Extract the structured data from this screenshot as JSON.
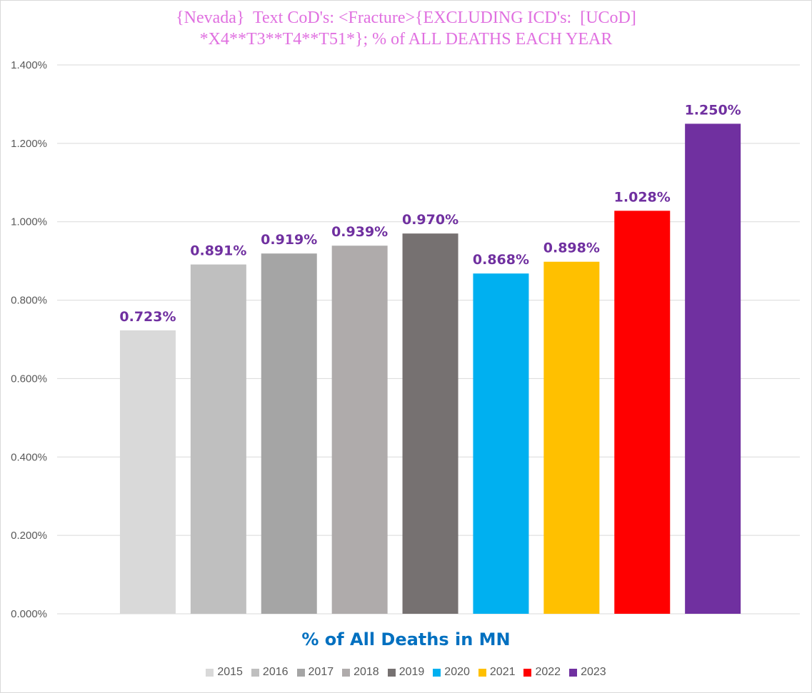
{
  "chart_data": {
    "type": "bar",
    "title_lines": [
      "{Nevada}  Text CoD's: <Fracture>{EXCLUDING ICD's:  [UCoD]",
      "*X4**T3**T4**T51*}; % of ALL DEATHS EACH YEAR"
    ],
    "xlabel": "% of All Deaths in MN",
    "ylabel": "",
    "ylim": [
      0,
      1.4
    ],
    "yticks": [
      0,
      0.2,
      0.4,
      0.6,
      0.8,
      1.0,
      1.2,
      1.4
    ],
    "ytick_labels": [
      "0.000%",
      "0.200%",
      "0.400%",
      "0.600%",
      "0.800%",
      "1.000%",
      "1.200%",
      "1.400%"
    ],
    "grid": true,
    "legend_position": "bottom",
    "series": [
      {
        "name": "2015",
        "value": 0.723,
        "label": "0.723%",
        "color": "#d9d9d9"
      },
      {
        "name": "2016",
        "value": 0.891,
        "label": "0.891%",
        "color": "#bfbfbf"
      },
      {
        "name": "2017",
        "value": 0.919,
        "label": "0.919%",
        "color": "#a5a5a5"
      },
      {
        "name": "2018",
        "value": 0.939,
        "label": "0.939%",
        "color": "#afabab"
      },
      {
        "name": "2019",
        "value": 0.97,
        "label": "0.970%",
        "color": "#767171"
      },
      {
        "name": "2020",
        "value": 0.868,
        "label": "0.868%",
        "color": "#00b0f0"
      },
      {
        "name": "2021",
        "value": 0.898,
        "label": "0.898%",
        "color": "#ffc000"
      },
      {
        "name": "2022",
        "value": 1.028,
        "label": "1.028%",
        "color": "#ff0000"
      },
      {
        "name": "2023",
        "value": 1.25,
        "label": "1.250%",
        "color": "#7030a0"
      }
    ]
  }
}
